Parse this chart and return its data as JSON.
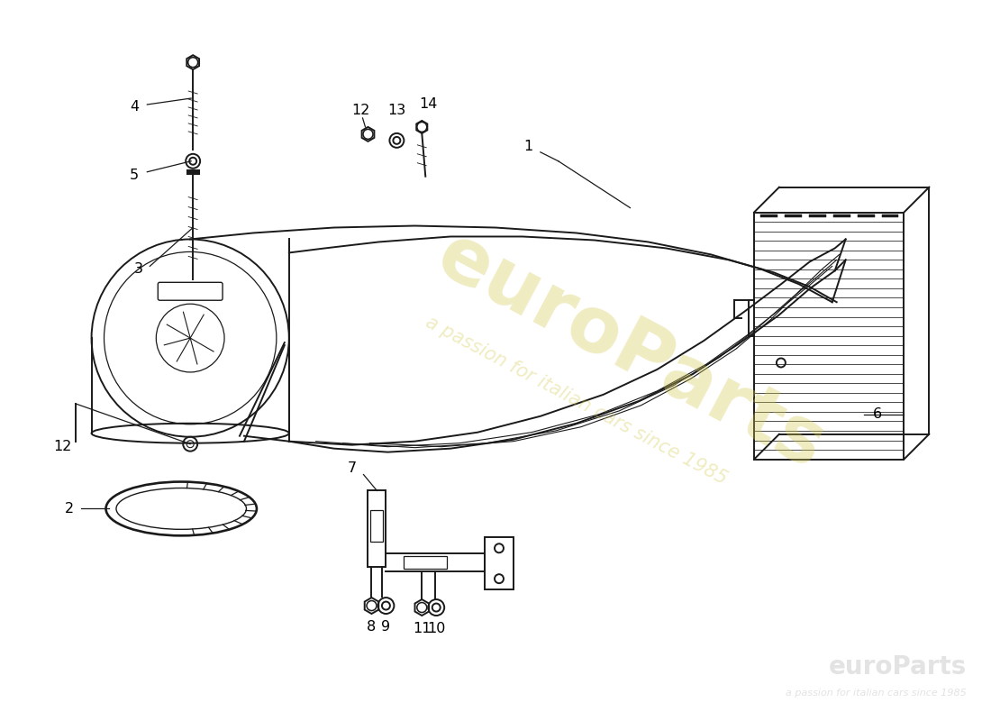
{
  "bg_color": "#ffffff",
  "line_color": "#1a1a1a",
  "watermark1": "euroParts",
  "watermark2": "a passion for italian cars since 1985",
  "wm_color": "#d4c850",
  "wm_alpha": 0.35,
  "logo_color": "#cccccc",
  "logo_alpha": 0.55,
  "lw": 1.4
}
